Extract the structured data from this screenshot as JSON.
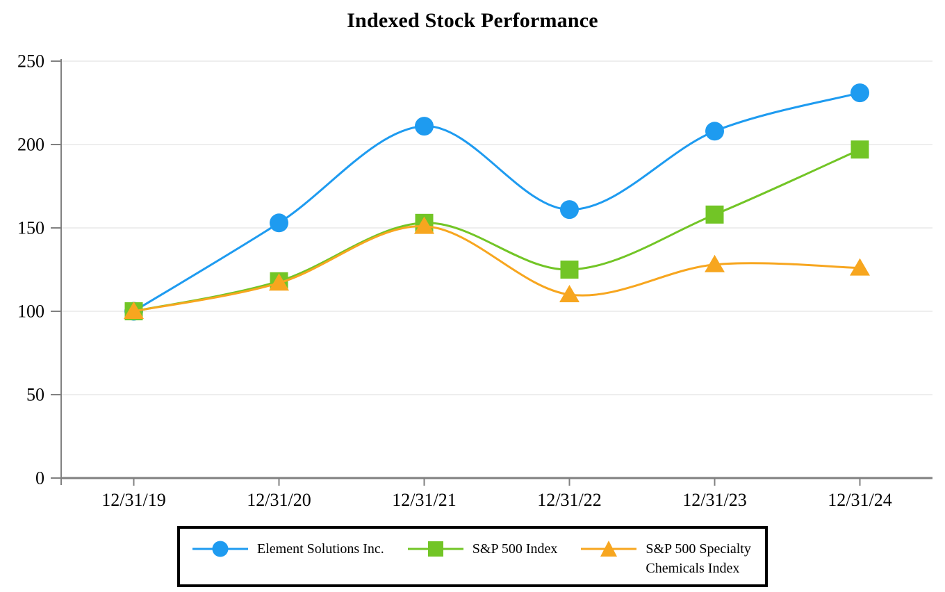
{
  "title": "Indexed Stock Performance",
  "chart_data": {
    "type": "line",
    "title": "Indexed Stock Performance",
    "x_categories": [
      "12/31/19",
      "12/31/20",
      "12/31/21",
      "12/31/22",
      "12/31/23",
      "12/31/24"
    ],
    "series": [
      {
        "name": "Element Solutions Inc.",
        "marker": "circle",
        "color": "#1E9BF0",
        "values": [
          100,
          153,
          211,
          161,
          208,
          231
        ]
      },
      {
        "name": "S&P 500 Index",
        "marker": "square",
        "color": "#72C526",
        "values": [
          100,
          118,
          153,
          125,
          158,
          197
        ]
      },
      {
        "name": "S&P 500 Specialty Chemicals Index",
        "marker": "triangle",
        "color": "#F7A61F",
        "values": [
          100,
          117,
          151,
          110,
          128,
          126
        ]
      }
    ],
    "ylim": [
      0,
      250
    ],
    "yticks": [
      0,
      50,
      100,
      150,
      200,
      250
    ],
    "xlabel": "",
    "ylabel": "",
    "grid": "horizontal-only",
    "line_style": "smooth",
    "legend_position": "bottom-boxed",
    "legend_labels": [
      "Element Solutions Inc.",
      "S&P 500 Index",
      "S&P 500 Specialty\nChemicals Index"
    ]
  },
  "style": {
    "background": "#FFFFFF",
    "axis_color": "#808080",
    "gridline_color": "#E9E9E9",
    "text_color": "#000000",
    "legend_border_color": "#000000"
  }
}
